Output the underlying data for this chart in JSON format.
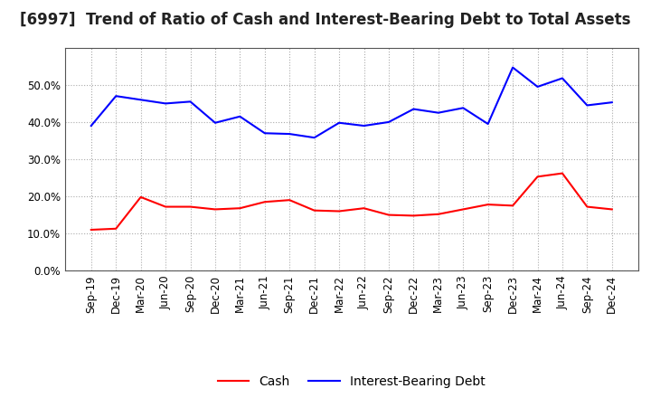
{
  "title": "[6997]  Trend of Ratio of Cash and Interest-Bearing Debt to Total Assets",
  "x_labels": [
    "Sep-19",
    "Dec-19",
    "Mar-20",
    "Jun-20",
    "Sep-20",
    "Dec-20",
    "Mar-21",
    "Jun-21",
    "Sep-21",
    "Dec-21",
    "Mar-22",
    "Jun-22",
    "Sep-22",
    "Dec-22",
    "Mar-23",
    "Jun-23",
    "Sep-23",
    "Dec-23",
    "Mar-24",
    "Jun-24",
    "Sep-24",
    "Dec-24"
  ],
  "cash": [
    0.11,
    0.113,
    0.198,
    0.172,
    0.172,
    0.165,
    0.168,
    0.185,
    0.19,
    0.162,
    0.16,
    0.168,
    0.15,
    0.148,
    0.152,
    0.165,
    0.178,
    0.175,
    0.253,
    0.262,
    0.172,
    0.165
  ],
  "interest_bearing_debt": [
    0.39,
    0.47,
    0.46,
    0.45,
    0.455,
    0.398,
    0.415,
    0.37,
    0.368,
    0.358,
    0.398,
    0.39,
    0.4,
    0.435,
    0.425,
    0.438,
    0.395,
    0.547,
    0.495,
    0.518,
    0.445,
    0.453
  ],
  "cash_color": "#ff0000",
  "debt_color": "#0000ff",
  "background_color": "#ffffff",
  "plot_bg_color": "#ffffff",
  "grid_color": "#aaaaaa",
  "ylim": [
    0.0,
    0.6
  ],
  "yticks": [
    0.0,
    0.1,
    0.2,
    0.3,
    0.4,
    0.5
  ],
  "legend_cash": "Cash",
  "legend_debt": "Interest-Bearing Debt",
  "title_fontsize": 12,
  "axis_fontsize": 8.5,
  "legend_fontsize": 10
}
